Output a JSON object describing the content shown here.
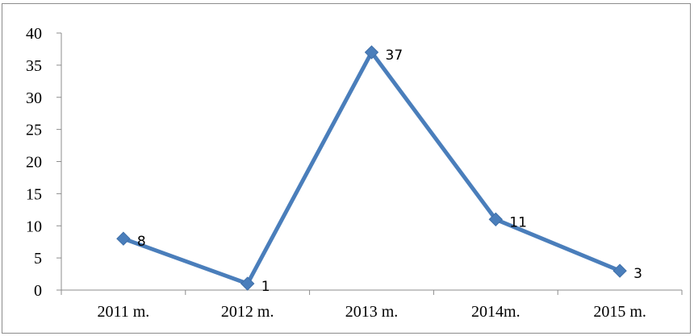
{
  "chart_data": {
    "type": "line",
    "categories": [
      "2011 m.",
      "2012 m.",
      "2013 m.",
      "2014m.",
      "2015 m."
    ],
    "series": [
      {
        "values": [
          8,
          1,
          37,
          11,
          3
        ]
      }
    ],
    "data_labels": [
      "8",
      "1",
      "37",
      "11",
      "3"
    ],
    "y_ticks": [
      "0",
      "5",
      "10",
      "15",
      "20",
      "25",
      "30",
      "35",
      "40"
    ],
    "ylim": [
      0,
      40
    ],
    "y_step": 5,
    "grid": false,
    "legend": "none",
    "marker": "diamond",
    "colors": {
      "line": "#4a7ebb",
      "marker": "#4a7ebb",
      "axis": "#8c8c8c"
    }
  }
}
